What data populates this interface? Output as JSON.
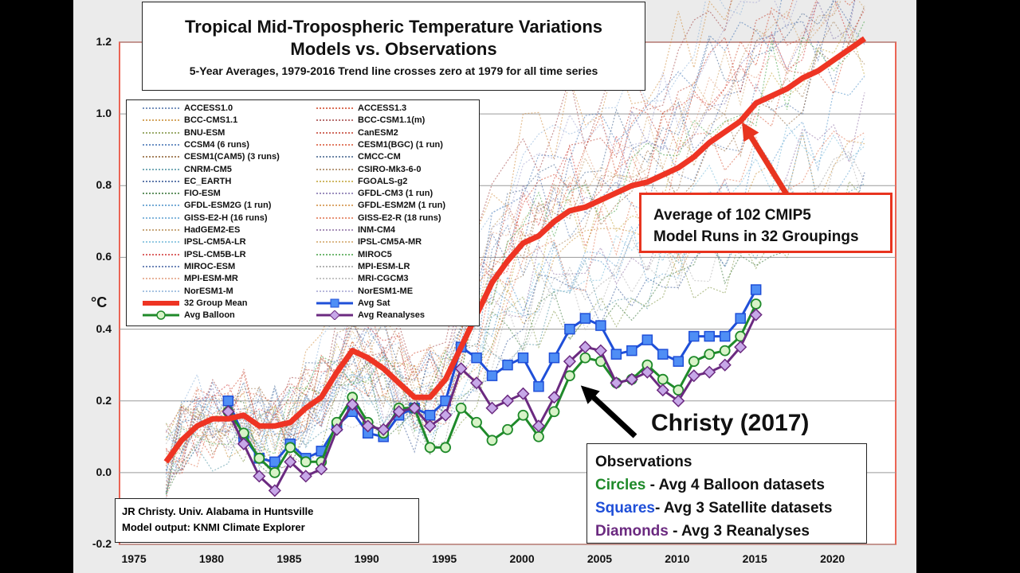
{
  "title": {
    "line1": "Tropical Mid-Tropospheric Temperature Variations",
    "line2": "Models vs. Observations",
    "line3": "5-Year Averages, 1979-2016 Trend line crosses zero at 1979 for all time series"
  },
  "chart_data": {
    "type": "line",
    "ylabel": "°C",
    "xlim": [
      1974,
      2024
    ],
    "ylim": [
      -0.2,
      1.2
    ],
    "yticks": [
      "1.2",
      "1.0",
      "0.8",
      "0.6",
      "0.4",
      "0.2",
      "0.0",
      "-0.2"
    ],
    "xticks": [
      "1975",
      "1980",
      "1985",
      "1990",
      "1995",
      "2000",
      "2005",
      "2010",
      "2015",
      "2020"
    ],
    "series": [
      {
        "name": "32 Group Mean",
        "color": "#ee3423",
        "x": [
          1977,
          1978,
          1979,
          1980,
          1981,
          1982,
          1983,
          1984,
          1985,
          1986,
          1987,
          1988,
          1989,
          1990,
          1991,
          1992,
          1993,
          1994,
          1995,
          1996,
          1997,
          1998,
          1999,
          2000,
          2001,
          2002,
          2003,
          2004,
          2005,
          2006,
          2007,
          2008,
          2009,
          2010,
          2011,
          2012,
          2013,
          2014,
          2015,
          2016,
          2017,
          2018,
          2019,
          2020,
          2021,
          2022
        ],
        "values": [
          0.03,
          0.09,
          0.13,
          0.15,
          0.15,
          0.16,
          0.13,
          0.13,
          0.14,
          0.18,
          0.21,
          0.28,
          0.34,
          0.32,
          0.29,
          0.25,
          0.21,
          0.21,
          0.26,
          0.35,
          0.44,
          0.53,
          0.59,
          0.64,
          0.66,
          0.7,
          0.73,
          0.74,
          0.76,
          0.78,
          0.8,
          0.81,
          0.83,
          0.85,
          0.88,
          0.92,
          0.95,
          0.98,
          1.03,
          1.05,
          1.07,
          1.1,
          1.12,
          1.15,
          1.18,
          1.21
        ]
      },
      {
        "name": "Avg Sat",
        "color": "#1f4fd8",
        "marker": "square",
        "x": [
          1981,
          1982,
          1983,
          1984,
          1985,
          1986,
          1987,
          1988,
          1989,
          1990,
          1991,
          1992,
          1993,
          1994,
          1995,
          1996,
          1997,
          1998,
          1999,
          2000,
          2001,
          2002,
          2003,
          2004,
          2005,
          2006,
          2007,
          2008,
          2009,
          2010,
          2011,
          2012,
          2013,
          2014,
          2015
        ],
        "values": [
          0.2,
          0.1,
          0.04,
          0.03,
          0.08,
          0.04,
          0.06,
          0.13,
          0.17,
          0.11,
          0.1,
          0.16,
          0.18,
          0.16,
          0.2,
          0.35,
          0.32,
          0.27,
          0.3,
          0.32,
          0.24,
          0.32,
          0.4,
          0.43,
          0.41,
          0.33,
          0.34,
          0.37,
          0.33,
          0.31,
          0.38,
          0.38,
          0.38,
          0.43,
          0.51
        ]
      },
      {
        "name": "Avg Balloon",
        "color": "#1f8a2a",
        "marker": "circle",
        "x": [
          1981,
          1982,
          1983,
          1984,
          1985,
          1986,
          1987,
          1988,
          1989,
          1990,
          1991,
          1992,
          1993,
          1994,
          1995,
          1996,
          1997,
          1998,
          1999,
          2000,
          2001,
          2002,
          2003,
          2004,
          2005,
          2006,
          2007,
          2008,
          2009,
          2010,
          2011,
          2012,
          2013,
          2014,
          2015
        ],
        "values": [
          0.17,
          0.11,
          0.04,
          0.0,
          0.07,
          0.03,
          0.03,
          0.14,
          0.21,
          0.14,
          0.11,
          0.18,
          0.18,
          0.07,
          0.07,
          0.18,
          0.14,
          0.09,
          0.12,
          0.16,
          0.1,
          0.17,
          0.27,
          0.32,
          0.31,
          0.25,
          0.26,
          0.3,
          0.26,
          0.23,
          0.31,
          0.33,
          0.34,
          0.38,
          0.47
        ]
      },
      {
        "name": "Avg Reanalyses",
        "color": "#6b2a80",
        "marker": "diamond",
        "x": [
          1981,
          1982,
          1983,
          1984,
          1985,
          1986,
          1987,
          1988,
          1989,
          1990,
          1991,
          1992,
          1993,
          1994,
          1995,
          1996,
          1997,
          1998,
          1999,
          2000,
          2001,
          2002,
          2003,
          2004,
          2005,
          2006,
          2007,
          2008,
          2009,
          2010,
          2011,
          2012,
          2013,
          2014,
          2015
        ],
        "values": [
          0.17,
          0.08,
          -0.01,
          -0.05,
          0.03,
          -0.01,
          0.01,
          0.12,
          0.19,
          0.13,
          0.12,
          0.17,
          0.18,
          0.13,
          0.16,
          0.29,
          0.25,
          0.18,
          0.2,
          0.22,
          0.13,
          0.21,
          0.31,
          0.35,
          0.34,
          0.25,
          0.26,
          0.28,
          0.23,
          0.2,
          0.27,
          0.28,
          0.3,
          0.35,
          0.44
        ]
      }
    ]
  },
  "legend": {
    "left": [
      {
        "label": "ACCESS1.0",
        "color": "#4a6fa8"
      },
      {
        "label": "BCC-CMS1.1",
        "color": "#c7892b"
      },
      {
        "label": "BNU-ESM",
        "color": "#7a8f3a"
      },
      {
        "label": "CCSM4 (6 runs)",
        "color": "#3d6fb0"
      },
      {
        "label": "CESM1(CAM5) (3 runs)",
        "color": "#8a5a2a"
      },
      {
        "label": "CNRM-CM5",
        "color": "#4a8fa0"
      },
      {
        "label": "EC_EARTH",
        "color": "#2b4f8f"
      },
      {
        "label": "FIO-ESM",
        "color": "#2f6f2f"
      },
      {
        "label": "GFDL-ESM2G (1 run)",
        "color": "#4a90c8"
      },
      {
        "label": "GISS-E2-H (16 runs)",
        "color": "#5a9fd0"
      },
      {
        "label": "HadGEM2-ES",
        "color": "#b58a50"
      },
      {
        "label": "IPSL-CM5A-LR",
        "color": "#70b8d8"
      },
      {
        "label": "IPSL-CM5B-LR",
        "color": "#d03030"
      },
      {
        "label": "MIROC-ESM",
        "color": "#3f5fa0"
      },
      {
        "label": "MPI-ESM-MR",
        "color": "#e09a7a"
      },
      {
        "label": "NorESM1-M",
        "color": "#8ab0d8"
      }
    ],
    "right": [
      {
        "label": "ACCESS1.3",
        "color": "#d04020"
      },
      {
        "label": "BCC-CSM1.1(m)",
        "color": "#a04040"
      },
      {
        "label": "CanESM2",
        "color": "#c03a2a"
      },
      {
        "label": "CESM1(BGC) (1 run)",
        "color": "#d85030"
      },
      {
        "label": "CMCC-CM",
        "color": "#3d5f8a"
      },
      {
        "label": "CSIRO-Mk3-6-0",
        "color": "#a07a50"
      },
      {
        "label": "FGOALS-g2",
        "color": "#c0a030"
      },
      {
        "label": "GFDL-CM3 (1 run)",
        "color": "#7a6aa8"
      },
      {
        "label": "GFDL-ESM2M (1 run)",
        "color": "#d08a3a"
      },
      {
        "label": "GISS-E2-R (18 runs)",
        "color": "#e0704a"
      },
      {
        "label": "INM-CM4",
        "color": "#8a6aa0"
      },
      {
        "label": "IPSL-CM5A-MR",
        "color": "#d0a060"
      },
      {
        "label": "MIROC5",
        "color": "#40a040"
      },
      {
        "label": "MPI-ESM-LR",
        "color": "#9a9a9a"
      },
      {
        "label": "MRI-CGCM3",
        "color": "#b0b0b0"
      },
      {
        "label": "NorESM1-ME",
        "color": "#a0a0d0"
      }
    ],
    "mean_label": "32 Group Mean",
    "sat_label": "Avg Sat",
    "balloon_label": "Avg Balloon",
    "reanalyses_label": "Avg Reanalyses"
  },
  "annotations": {
    "model_avg_line1": "Average of 102 CMIP5",
    "model_avg_line2": "Model Runs in 32 Groupings",
    "christy": "Christy (2017)",
    "obs_title": "Observations",
    "circles_key": "Circles",
    "circles_text": " - Avg 4 Balloon datasets",
    "squares_key": "Squares",
    "squares_text": "- Avg 3 Satellite datasets",
    "diamonds_key": "Diamonds",
    "diamonds_text": " - Avg 3 Reanalyses",
    "credit_line1": "JR Christy. Univ. Alabama in Huntsville",
    "credit_line2": "Model output: KNMI Climate Explorer"
  },
  "colors": {
    "mean": "#ee3423",
    "sat": "#1f4fd8",
    "balloon": "#1f8a2a",
    "reanalyses": "#6b2a80",
    "frame": "#e8341f"
  }
}
